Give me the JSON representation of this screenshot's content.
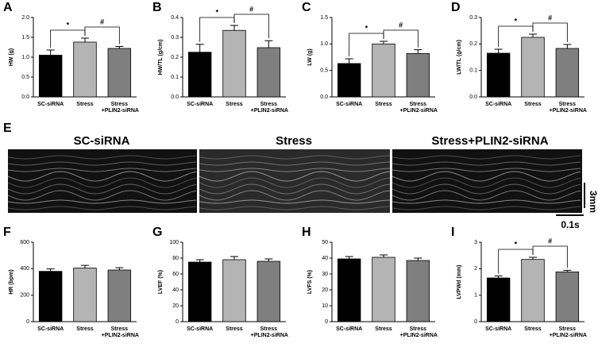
{
  "chart_data": [
    {
      "type": "bar",
      "panel": "A",
      "ylabel": "HW (g)",
      "categories": [
        "SC-siRNA",
        "Stress",
        "Stress\n+PLIN2-siRNA"
      ],
      "values": [
        1.05,
        1.38,
        1.22
      ],
      "errors": [
        0.13,
        0.1,
        0.05
      ],
      "colors": [
        "#000000",
        "#b4b4b4",
        "#7f7f7f"
      ],
      "ylim": [
        0,
        2
      ],
      "yticks": [
        {
          "value": 0,
          "label": "0.0"
        },
        0.5,
        {
          "value": 1,
          "label": "1.0"
        },
        1.5,
        {
          "value": 2,
          "label": "2.0"
        }
      ],
      "significance": [
        {
          "label": "*",
          "pair": [
            0,
            1
          ]
        },
        {
          "label": "#",
          "pair": [
            1,
            2
          ]
        }
      ]
    },
    {
      "type": "bar",
      "panel": "B",
      "ylabel": "HW/TL (g/cm)",
      "categories": [
        "SC-siRNA",
        "Stress",
        "Stress\n+PLIN2-siRNA"
      ],
      "values": [
        0.225,
        0.335,
        0.248
      ],
      "errors": [
        0.04,
        0.025,
        0.035
      ],
      "colors": [
        "#000000",
        "#b4b4b4",
        "#7f7f7f"
      ],
      "ylim": [
        0,
        0.4
      ],
      "yticks": [
        {
          "value": 0,
          "label": "0.0"
        },
        0.1,
        0.2,
        0.3,
        0.4
      ],
      "significance": [
        {
          "label": "*",
          "pair": [
            0,
            1
          ]
        },
        {
          "label": "#",
          "pair": [
            1,
            2
          ]
        }
      ]
    },
    {
      "type": "bar",
      "panel": "C",
      "ylabel": "LW (g)",
      "categories": [
        "SC-siRNA",
        "Stress",
        "Stress\n+PLIN2-siRNA"
      ],
      "values": [
        0.63,
        1.0,
        0.82
      ],
      "errors": [
        0.09,
        0.05,
        0.07
      ],
      "colors": [
        "#000000",
        "#b4b4b4",
        "#7f7f7f"
      ],
      "ylim": [
        0,
        1.5
      ],
      "yticks": [
        {
          "value": 0,
          "label": "0.0"
        },
        0.5,
        {
          "value": 1,
          "label": "1.0"
        },
        1.5
      ],
      "significance": [
        {
          "label": "*",
          "pair": [
            0,
            1
          ]
        },
        {
          "label": "#",
          "pair": [
            1,
            2
          ]
        }
      ]
    },
    {
      "type": "bar",
      "panel": "D",
      "ylabel": "LW/TL (g/cm)",
      "categories": [
        "SC-siRNA",
        "Stress",
        "Stress\n+PLIN2-siRNA"
      ],
      "values": [
        0.165,
        0.225,
        0.183
      ],
      "errors": [
        0.015,
        0.012,
        0.015
      ],
      "colors": [
        "#000000",
        "#b4b4b4",
        "#7f7f7f"
      ],
      "ylim": [
        0,
        0.3
      ],
      "yticks": [
        {
          "value": 0,
          "label": "0.0"
        },
        0.1,
        0.2,
        0.3
      ],
      "significance": [
        {
          "label": "*",
          "pair": [
            0,
            1
          ]
        },
        {
          "label": "#",
          "pair": [
            1,
            2
          ]
        }
      ]
    },
    {
      "type": "bar",
      "panel": "F",
      "ylabel": "HR (bpm)",
      "categories": [
        "SC-siRNA",
        "Stress",
        "Stress\n+PLIN2-siRNA"
      ],
      "values": [
        380,
        405,
        390
      ],
      "errors": [
        18,
        20,
        17
      ],
      "colors": [
        "#000000",
        "#b4b4b4",
        "#7f7f7f"
      ],
      "ylim": [
        0,
        600
      ],
      "yticks": [
        0,
        200,
        400,
        600
      ],
      "significance": []
    },
    {
      "type": "bar",
      "panel": "G",
      "ylabel": "LVEF (%)",
      "categories": [
        "SC-siRNA",
        "Stress",
        "Stress\n+PLIN2-siRNA"
      ],
      "values": [
        75,
        78,
        76
      ],
      "errors": [
        3,
        4,
        3
      ],
      "colors": [
        "#000000",
        "#b4b4b4",
        "#7f7f7f"
      ],
      "ylim": [
        0,
        100
      ],
      "yticks": [
        0,
        20,
        40,
        60,
        80,
        100
      ],
      "significance": []
    },
    {
      "type": "bar",
      "panel": "H",
      "ylabel": "LVFS (%)",
      "categories": [
        "SC-siRNA",
        "Stress",
        "Stress\n+PLIN2-siRNA"
      ],
      "values": [
        39.5,
        40.5,
        38.5
      ],
      "errors": [
        1.5,
        1.5,
        1.5
      ],
      "colors": [
        "#000000",
        "#b4b4b4",
        "#7f7f7f"
      ],
      "ylim": [
        0,
        50
      ],
      "yticks": [
        0,
        10,
        20,
        30,
        40,
        50
      ],
      "significance": []
    },
    {
      "type": "bar",
      "panel": "I",
      "ylabel": "LVPWd (mm)",
      "categories": [
        "SC-siRNA",
        "Stress",
        "Stress\n+PLIN2-siRNA"
      ],
      "values": [
        1.65,
        2.35,
        1.88
      ],
      "errors": [
        0.08,
        0.08,
        0.06
      ],
      "colors": [
        "#000000",
        "#b4b4b4",
        "#7f7f7f"
      ],
      "ylim": [
        0,
        3
      ],
      "yticks": [
        0,
        1,
        2,
        3
      ],
      "significance": [
        {
          "label": "*",
          "pair": [
            0,
            1
          ]
        },
        {
          "label": "#",
          "pair": [
            1,
            2
          ]
        }
      ]
    }
  ],
  "echo_panel": {
    "panel": "E",
    "titles": [
      "SC-siRNA",
      "Stress",
      "Stress+PLIN2-siRNA"
    ],
    "scale_depth": "3mm",
    "scale_time": "0.1s"
  }
}
